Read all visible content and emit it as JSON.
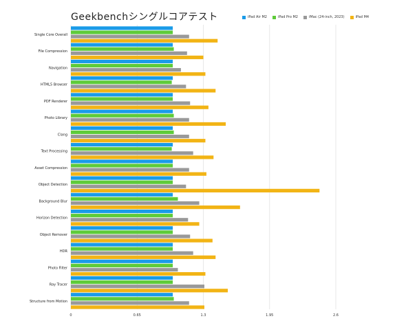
{
  "chart_data": {
    "type": "bar",
    "orientation": "horizontal",
    "title": "Geekbenchシングルコアテスト",
    "xlim": [
      0,
      2.6
    ],
    "xticks": [
      0,
      0.65,
      1.3,
      1.95,
      2.6
    ],
    "xtick_labels": [
      "0",
      "0.65",
      "1.3",
      "1.95",
      "2.6"
    ],
    "grid": "vertical",
    "legend_position": "top-right",
    "categories": [
      "Single Core Overall",
      "File Compression",
      "Navigation",
      "HTML5 Browser",
      "PDF Renderer",
      "Photo Library",
      "Clang",
      "Text Processing",
      "Asset Compression",
      "Object Detection",
      "Background Blur",
      "Horizon Detection",
      "Object Remover",
      "HDR",
      "Photo Filter",
      "Ray Tracer",
      "Structure from Motion"
    ],
    "series": [
      {
        "name": "iPad Air M2",
        "color": "#1a9be8",
        "values": [
          1.0,
          1.0,
          1.0,
          1.0,
          1.0,
          1.0,
          1.0,
          1.0,
          1.0,
          1.0,
          1.0,
          1.0,
          1.0,
          1.0,
          1.0,
          1.0,
          1.0
        ]
      },
      {
        "name": "iPad Pro M2",
        "color": "#5ecb3a",
        "values": [
          1.0,
          1.01,
          1.0,
          0.99,
          1.0,
          1.01,
          1.01,
          0.99,
          1.0,
          1.0,
          1.05,
          1.0,
          1.0,
          1.0,
          1.0,
          1.0,
          1.01
        ]
      },
      {
        "name": "iMac (24-inch, 2023)",
        "color": "#999999",
        "values": [
          1.16,
          1.14,
          1.08,
          1.13,
          1.17,
          1.16,
          1.16,
          1.2,
          1.16,
          1.13,
          1.26,
          1.15,
          1.17,
          1.2,
          1.05,
          1.31,
          1.16
        ]
      },
      {
        "name": "iPad M4",
        "color": "#f2b415",
        "values": [
          1.44,
          1.3,
          1.32,
          1.42,
          1.35,
          1.52,
          1.32,
          1.4,
          1.33,
          2.44,
          1.66,
          1.26,
          1.39,
          1.42,
          1.32,
          1.54,
          1.31
        ]
      }
    ]
  }
}
